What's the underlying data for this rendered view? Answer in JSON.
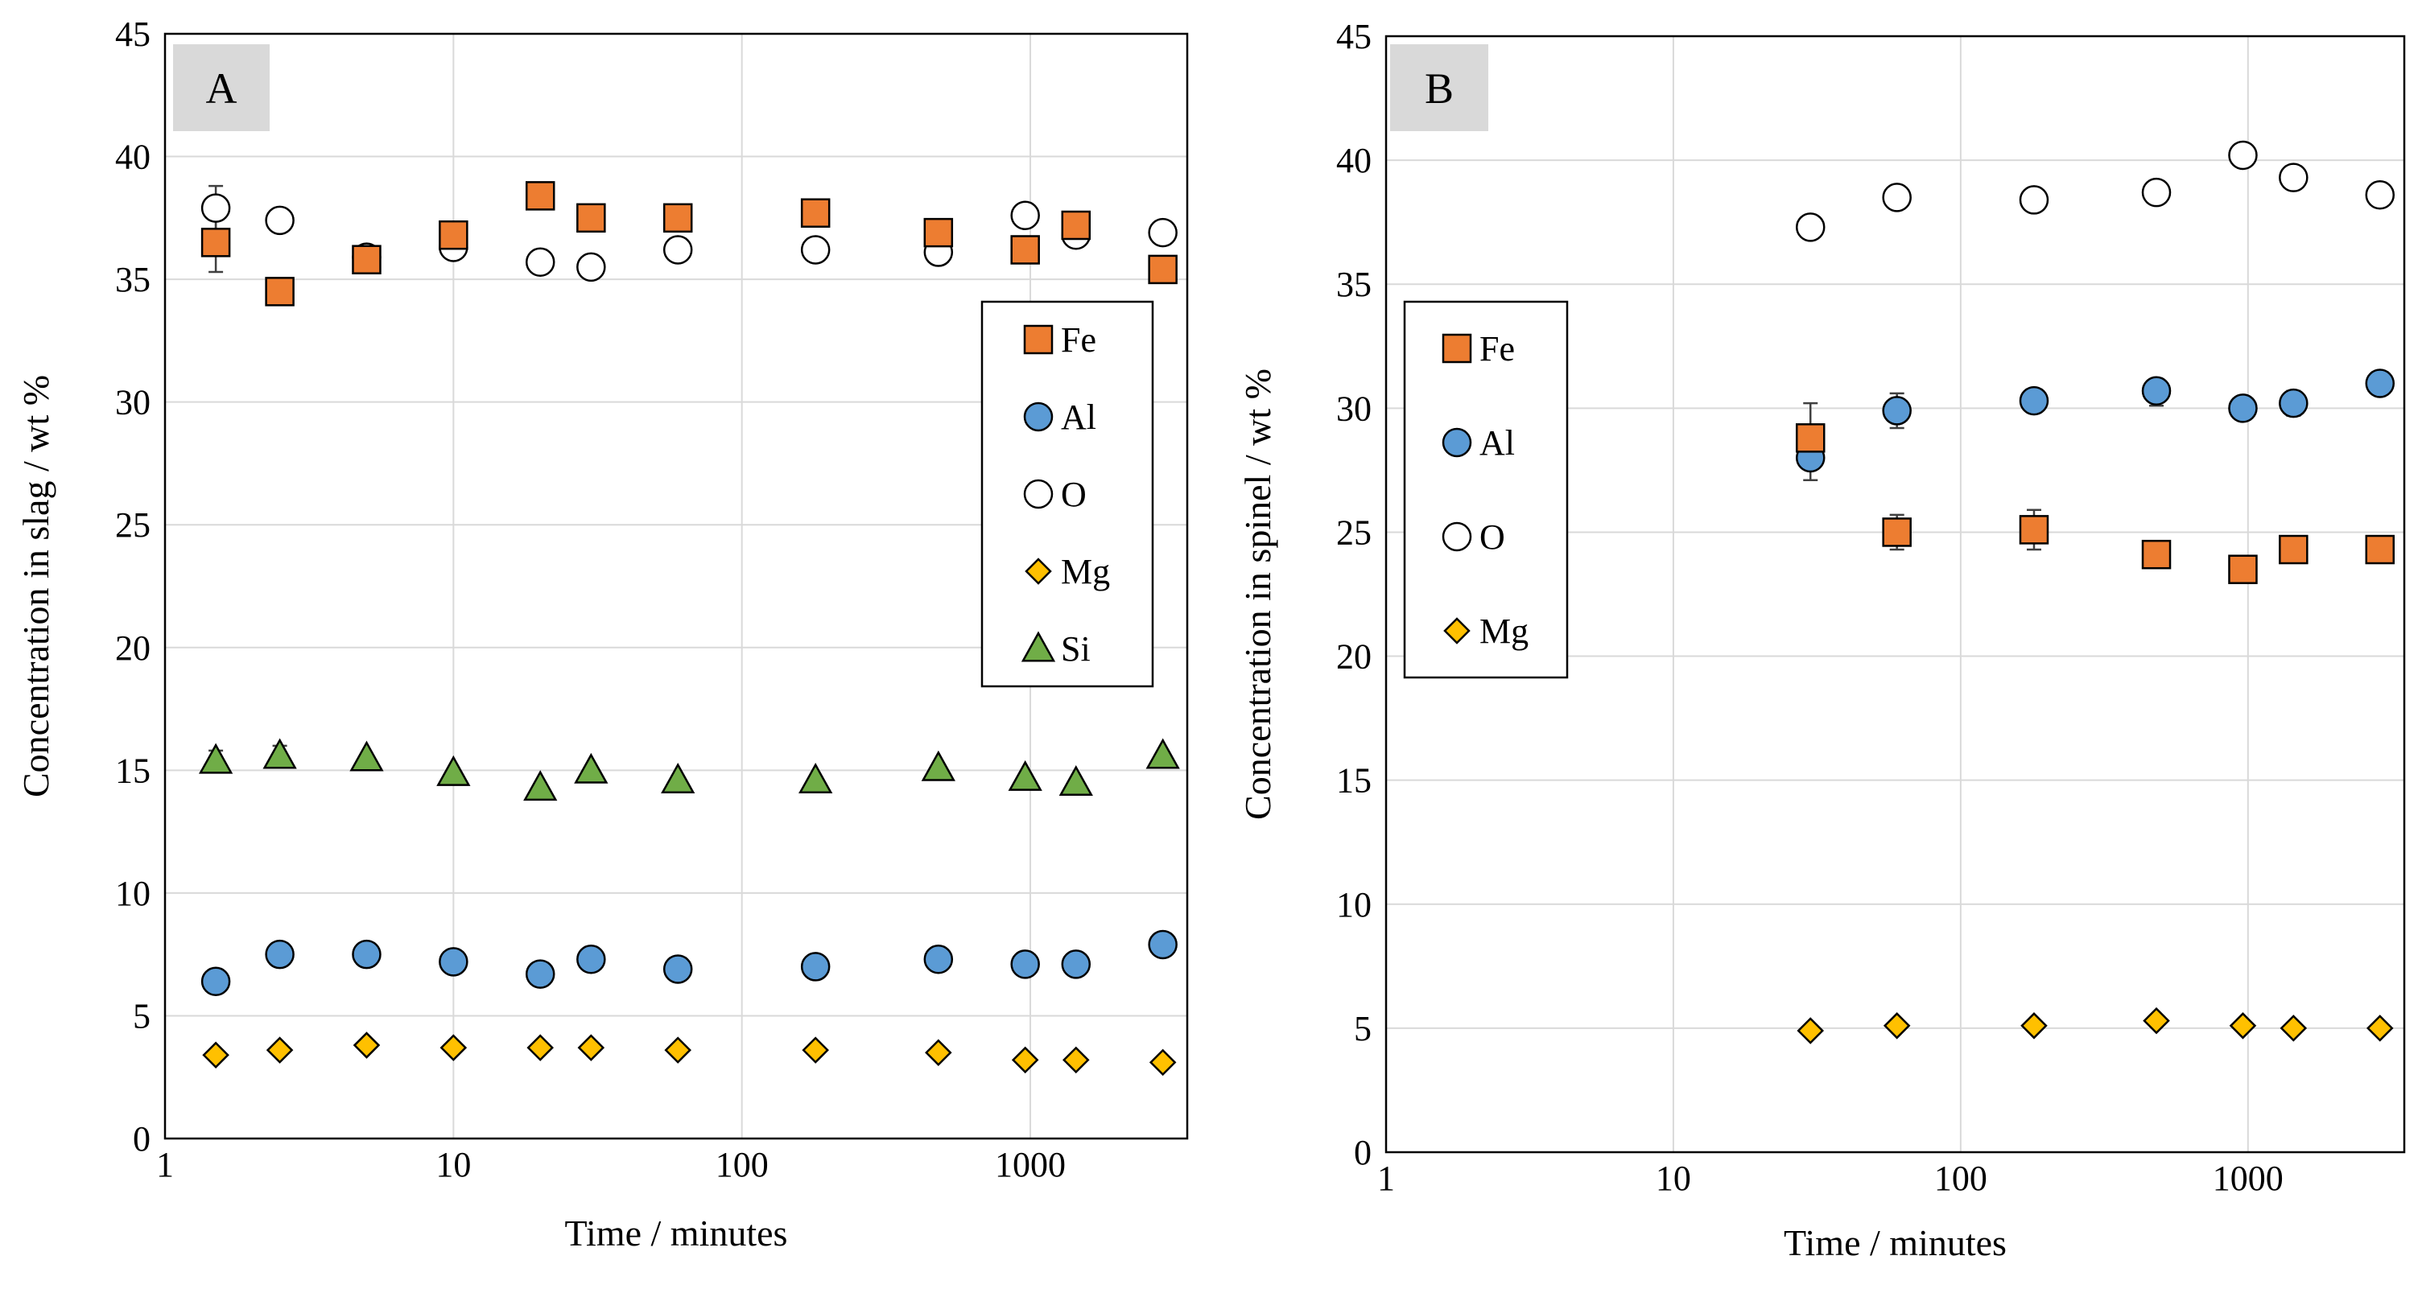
{
  "chart_data": [
    {
      "type": "scatter",
      "panel_label": "A",
      "xlabel": "Time / minutes",
      "ylabel": "Concentration in slag / wt %",
      "xscale": "log",
      "xlim": [
        1,
        3500
      ],
      "ylim": [
        0,
        45
      ],
      "xticks": [
        1,
        10,
        100,
        1000
      ],
      "xtick_labels": [
        "1",
        "10",
        "100",
        "1000"
      ],
      "yticks": [
        0,
        5,
        10,
        15,
        20,
        25,
        30,
        35,
        40,
        45
      ],
      "ytick_labels": [
        "0",
        "5",
        "10",
        "15",
        "20",
        "25",
        "30",
        "35",
        "40",
        "45"
      ],
      "grid": true,
      "legend_position": "right",
      "series": [
        {
          "name": "Fe",
          "marker": "square",
          "color": "#ED7D31",
          "x": [
            1.5,
            2.5,
            5,
            10,
            20,
            30,
            60,
            180,
            480,
            960,
            1440,
            2880
          ],
          "y": [
            36.5,
            34.5,
            35.8,
            36.8,
            38.4,
            37.5,
            37.5,
            37.7,
            36.9,
            36.2,
            37.2,
            35.4
          ]
        },
        {
          "name": "Al",
          "marker": "circle",
          "color": "#5B9BD5",
          "x": [
            1.5,
            2.5,
            5,
            10,
            20,
            30,
            60,
            180,
            480,
            960,
            1440,
            2880
          ],
          "y": [
            6.4,
            7.5,
            7.5,
            7.2,
            6.7,
            7.3,
            6.9,
            7.0,
            7.3,
            7.1,
            7.1,
            7.9
          ]
        },
        {
          "name": "O",
          "marker": "circle-open",
          "color": "#FFFFFF",
          "x": [
            1.5,
            2.5,
            5,
            10,
            20,
            30,
            60,
            180,
            480,
            960,
            1440,
            2880
          ],
          "y": [
            37.9,
            37.4,
            35.9,
            36.3,
            35.7,
            35.5,
            36.2,
            36.2,
            36.1,
            37.6,
            36.8,
            36.9
          ]
        },
        {
          "name": "Mg",
          "marker": "diamond",
          "color": "#FFC000",
          "x": [
            1.5,
            2.5,
            5,
            10,
            20,
            30,
            60,
            180,
            480,
            960,
            1440,
            2880
          ],
          "y": [
            3.4,
            3.6,
            3.8,
            3.7,
            3.7,
            3.7,
            3.6,
            3.6,
            3.5,
            3.2,
            3.2,
            3.1
          ]
        },
        {
          "name": "Si",
          "marker": "triangle",
          "color": "#70AD47",
          "x": [
            1.5,
            2.5,
            5,
            10,
            20,
            30,
            60,
            180,
            480,
            960,
            1440,
            2880
          ],
          "y": [
            15.4,
            15.6,
            15.5,
            14.9,
            14.3,
            15.0,
            14.6,
            14.6,
            15.1,
            14.7,
            14.5,
            15.6
          ]
        }
      ],
      "error_bars": [
        {
          "series": "Fe",
          "x": 1.5,
          "low": 35.3,
          "high": 37.7
        },
        {
          "series": "O",
          "x": 1.5,
          "low": 37.0,
          "high": 38.8
        },
        {
          "series": "Si",
          "x": 1.5,
          "low": 15.0,
          "high": 15.8
        },
        {
          "series": "Si",
          "x": 2.5,
          "low": 15.2,
          "high": 16.0
        }
      ]
    },
    {
      "type": "scatter",
      "panel_label": "B",
      "xlabel": "Time / minutes",
      "ylabel": "Concentration in spinel / wt %",
      "xscale": "log",
      "xlim": [
        1,
        3500
      ],
      "ylim": [
        0,
        45
      ],
      "xticks": [
        1,
        10,
        100,
        1000
      ],
      "xtick_labels": [
        "1",
        "10",
        "100",
        "1000"
      ],
      "yticks": [
        0,
        5,
        10,
        15,
        20,
        25,
        30,
        35,
        40,
        45
      ],
      "ytick_labels": [
        "0",
        "5",
        "10",
        "15",
        "20",
        "25",
        "30",
        "35",
        "40",
        "45"
      ],
      "grid": true,
      "legend_position": "left",
      "series": [
        {
          "name": "Fe",
          "marker": "square",
          "color": "#ED7D31",
          "x": [
            30,
            60,
            180,
            480,
            960,
            1440,
            2880
          ],
          "y": [
            28.8,
            25.0,
            25.1,
            24.1,
            23.5,
            24.3,
            24.3
          ]
        },
        {
          "name": "Al",
          "marker": "circle",
          "color": "#5B9BD5",
          "x": [
            30,
            60,
            180,
            480,
            960,
            1440,
            2880
          ],
          "y": [
            28.0,
            29.9,
            30.3,
            30.7,
            30.0,
            30.2,
            31.0
          ]
        },
        {
          "name": "O",
          "marker": "circle-open",
          "color": "#FFFFFF",
          "x": [
            30,
            60,
            180,
            480,
            960,
            1440,
            2880
          ],
          "y": [
            37.3,
            38.5,
            38.4,
            38.7,
            40.2,
            39.3,
            38.6
          ]
        },
        {
          "name": "Mg",
          "marker": "diamond",
          "color": "#FFC000",
          "x": [
            30,
            60,
            180,
            480,
            960,
            1440,
            2880
          ],
          "y": [
            4.9,
            5.1,
            5.1,
            5.3,
            5.1,
            5.0,
            5.0
          ]
        }
      ],
      "error_bars": [
        {
          "series": "Fe",
          "x": 30,
          "low": 27.8,
          "high": 30.2
        },
        {
          "series": "Al",
          "x": 30,
          "low": 27.1,
          "high": 28.8
        },
        {
          "series": "Al",
          "x": 60,
          "low": 29.2,
          "high": 30.6
        },
        {
          "series": "Fe",
          "x": 60,
          "low": 24.3,
          "high": 25.7
        },
        {
          "series": "Fe",
          "x": 180,
          "low": 24.3,
          "high": 25.9
        },
        {
          "series": "Al",
          "x": 480,
          "low": 30.1,
          "high": 31.1
        },
        {
          "series": "Al",
          "x": 1440,
          "low": 29.7,
          "high": 30.7
        }
      ]
    }
  ]
}
